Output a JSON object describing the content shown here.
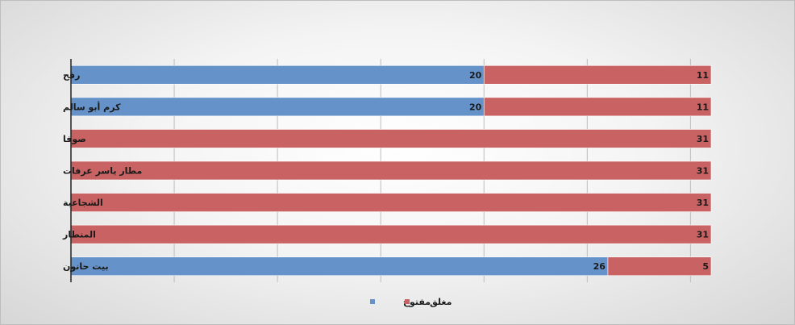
{
  "chart_data": {
    "type": "bar",
    "orientation": "horizontal",
    "stacked": true,
    "categories": [
      "رفح",
      "كرم أبو سالم",
      "صوفا",
      "مطار ياسر عرفات",
      "الشجاعية",
      "المنطار",
      "بيت حانون"
    ],
    "series": [
      {
        "name": "مفتوح",
        "color": "#6592c9",
        "values": [
          20,
          20,
          0,
          0,
          0,
          0,
          26
        ]
      },
      {
        "name": "مغلق",
        "color": "#c96363",
        "values": [
          11,
          11,
          31,
          31,
          31,
          31,
          5
        ]
      }
    ],
    "xlim": [
      0,
      31
    ],
    "grid": true,
    "legend_position": "bottom"
  }
}
